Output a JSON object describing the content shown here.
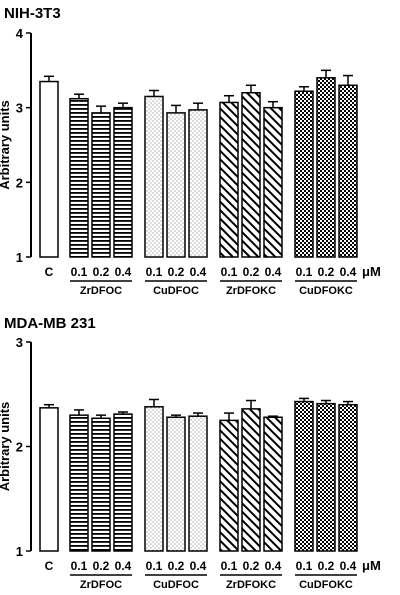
{
  "chart_data": [
    {
      "type": "bar",
      "title": "NIH-3T3",
      "ylabel": "Arbitrary units",
      "ylim": [
        1,
        4
      ],
      "yticks": [
        "1",
        "2",
        "3",
        "4"
      ],
      "unit": "μM",
      "control_label": "C",
      "values": [
        3.35,
        3.12,
        2.93,
        3.0,
        3.15,
        2.93,
        2.97,
        3.07,
        3.2,
        3.0,
        3.22,
        3.4,
        3.3
      ],
      "errors": [
        0.07,
        0.06,
        0.09,
        0.06,
        0.08,
        0.1,
        0.09,
        0.09,
        0.1,
        0.08,
        0.06,
        0.1,
        0.13
      ],
      "categories": [
        "C",
        "0.1",
        "0.2",
        "0.4",
        "0.1",
        "0.2",
        "0.4",
        "0.1",
        "0.2",
        "0.4",
        "0.1",
        "0.2",
        "0.4"
      ],
      "groups": [
        {
          "name": "ZrDFOC",
          "labels": [
            "0.1",
            "0.2",
            "0.4"
          ]
        },
        {
          "name": "CuDFOC",
          "labels": [
            "0.1",
            "0.2",
            "0.4"
          ]
        },
        {
          "name": "ZrDFOKC",
          "labels": [
            "0.1",
            "0.2",
            "0.4"
          ]
        },
        {
          "name": "CuDFOKC",
          "labels": [
            "0.1",
            "0.2",
            "0.4"
          ]
        }
      ],
      "grid": false
    },
    {
      "type": "bar",
      "title": "MDA-MB 231",
      "ylabel": "Arbitrary units",
      "ylim": [
        1,
        3
      ],
      "yticks": [
        "1",
        "2",
        "3"
      ],
      "unit": "μM",
      "control_label": "C",
      "values": [
        2.37,
        2.3,
        2.27,
        2.31,
        2.38,
        2.28,
        2.29,
        2.25,
        2.36,
        2.28,
        2.43,
        2.41,
        2.4
      ],
      "errors": [
        0.03,
        0.05,
        0.03,
        0.02,
        0.07,
        0.02,
        0.03,
        0.07,
        0.08,
        0.01,
        0.03,
        0.03,
        0.03
      ],
      "categories": [
        "C",
        "0.1",
        "0.2",
        "0.4",
        "0.1",
        "0.2",
        "0.4",
        "0.1",
        "0.2",
        "0.4",
        "0.1",
        "0.2",
        "0.4"
      ],
      "groups": [
        {
          "name": "ZrDFOC",
          "labels": [
            "0.1",
            "0.2",
            "0.4"
          ]
        },
        {
          "name": "CuDFOC",
          "labels": [
            "0.1",
            "0.2",
            "0.4"
          ]
        },
        {
          "name": "ZrDFOKC",
          "labels": [
            "0.1",
            "0.2",
            "0.4"
          ]
        },
        {
          "name": "CuDFOKC",
          "labels": [
            "0.1",
            "0.2",
            "0.4"
          ]
        }
      ],
      "grid": false
    }
  ]
}
